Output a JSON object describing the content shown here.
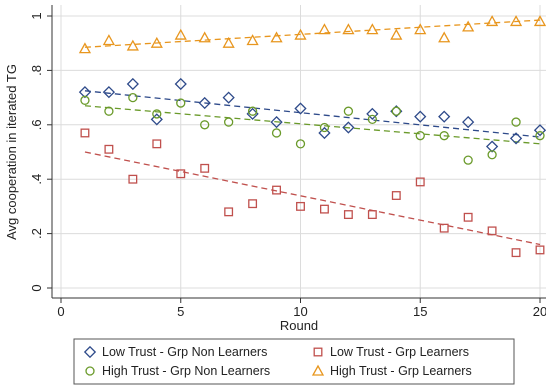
{
  "chart_data": {
    "type": "scatter",
    "xlabel": "Round",
    "ylabel": "Avg cooperation in iterated TG",
    "xlim": [
      0,
      20
    ],
    "ylim": [
      0,
      1
    ],
    "xticks": [
      0,
      5,
      10,
      15,
      20
    ],
    "yticks": [
      0,
      0.2,
      0.4,
      0.6,
      0.8,
      1
    ],
    "ytick_labels": [
      "0",
      ".2",
      ".4",
      ".6",
      ".8",
      "1"
    ],
    "grid": true,
    "legend_position": "bottom",
    "x": [
      1,
      2,
      3,
      4,
      5,
      6,
      7,
      8,
      9,
      10,
      11,
      12,
      13,
      14,
      15,
      16,
      17,
      18,
      19,
      20
    ],
    "series": [
      {
        "name": "Low Trust - Grp Non Learners",
        "marker": "diamond",
        "color": "#2e4a8a",
        "values": [
          0.72,
          0.72,
          0.75,
          0.62,
          0.75,
          0.68,
          0.7,
          0.64,
          0.61,
          0.66,
          0.57,
          0.59,
          0.64,
          0.65,
          0.63,
          0.63,
          0.61,
          0.52,
          0.55,
          0.58
        ],
        "fit": [
          0.725,
          0.555
        ]
      },
      {
        "name": "Low Trust - Grp Learners",
        "marker": "square",
        "color": "#c0504d",
        "values": [
          0.57,
          0.51,
          0.4,
          0.53,
          0.42,
          0.44,
          0.28,
          0.31,
          0.36,
          0.3,
          0.29,
          0.27,
          0.27,
          0.34,
          0.39,
          0.22,
          0.26,
          0.21,
          0.13,
          0.14
        ],
        "fit": [
          0.5,
          0.16
        ]
      },
      {
        "name": "High Trust - Grp Non Learners",
        "marker": "circle",
        "color": "#6a9a2a",
        "values": [
          0.69,
          0.65,
          0.7,
          0.64,
          0.68,
          0.6,
          0.61,
          0.65,
          0.57,
          0.53,
          0.59,
          0.65,
          0.62,
          0.65,
          0.56,
          0.56,
          0.47,
          0.49,
          0.61,
          0.56
        ],
        "fit": [
          0.67,
          0.53
        ]
      },
      {
        "name": "High Trust - Grp Learners",
        "marker": "triangle",
        "color": "#e8961e",
        "values": [
          0.88,
          0.91,
          0.89,
          0.9,
          0.93,
          0.92,
          0.9,
          0.91,
          0.92,
          0.93,
          0.95,
          0.95,
          0.95,
          0.93,
          0.95,
          0.92,
          0.96,
          0.98,
          0.98,
          0.98
        ],
        "fit": [
          0.885,
          0.985
        ]
      }
    ]
  }
}
